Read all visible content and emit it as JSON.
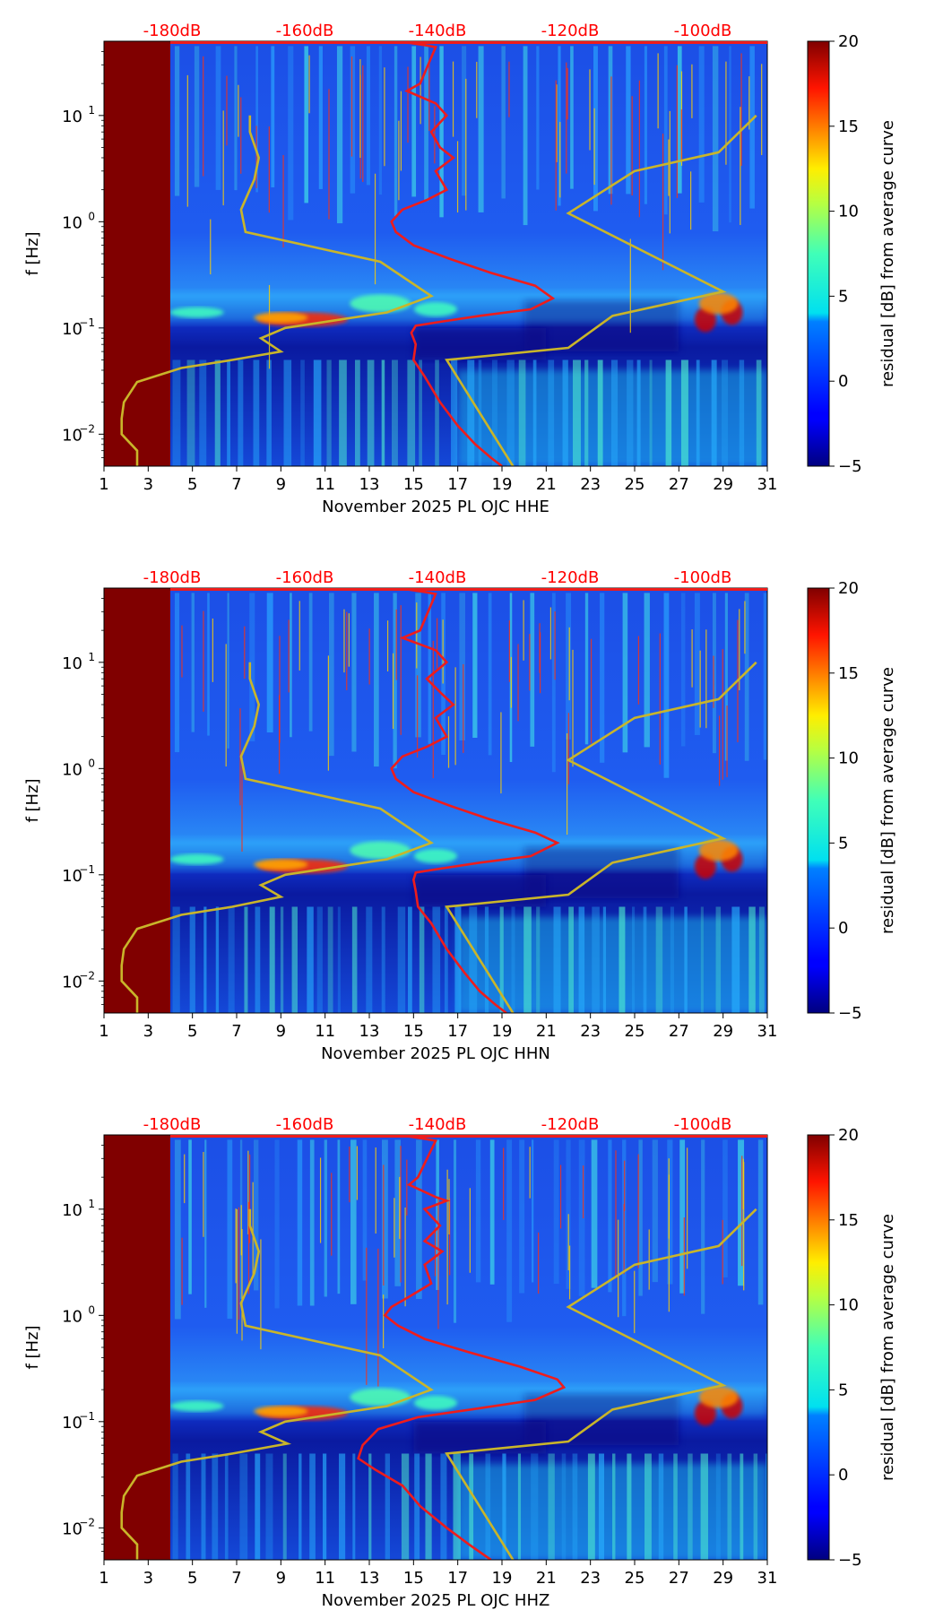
{
  "chart_data": [
    {
      "type": "heatmap",
      "channel": "HHE",
      "xlabel": "November 2025 PL OJC  HHE",
      "ylabel": "f [Hz]",
      "colorbar_label": "residual [dB] from average curve",
      "colorbar_range": [
        -5,
        20
      ],
      "colorbar_ticks": [
        "-5",
        "0",
        "5",
        "10",
        "15",
        "20"
      ],
      "xlim": [
        1,
        31
      ],
      "xticks": [
        "1",
        "3",
        "5",
        "7",
        "9",
        "11",
        "13",
        "15",
        "17",
        "19",
        "21",
        "23",
        "25",
        "27",
        "29",
        "31"
      ],
      "ylim": [
        0.005,
        50
      ],
      "yscale": "log",
      "yticks": [
        {
          "base": "10",
          "exp": "-2"
        },
        {
          "base": "10",
          "exp": "-1"
        },
        {
          "base": "10",
          "exp": "0"
        },
        {
          "base": "10",
          "exp": "1"
        }
      ],
      "top_axis_labels": [
        "-180dB",
        "-160dB",
        "-140dB",
        "-120dB",
        "-100dB"
      ],
      "top_axis_color": "#ff0000",
      "no_data_until_day": 4,
      "red_curve": [
        [
          14.3,
          50
        ],
        [
          15.5,
          46
        ],
        [
          16,
          44
        ],
        [
          15.3,
          20
        ],
        [
          14.7,
          17
        ],
        [
          16,
          13
        ],
        [
          16.5,
          10
        ],
        [
          15.8,
          7
        ],
        [
          16.2,
          5
        ],
        [
          16.8,
          4
        ],
        [
          16,
          3
        ],
        [
          16.5,
          2
        ],
        [
          15.6,
          1.6
        ],
        [
          14.5,
          1.3
        ],
        [
          14,
          1
        ],
        [
          14.2,
          0.8
        ],
        [
          15,
          0.6
        ],
        [
          16.6,
          0.45
        ],
        [
          18.5,
          0.33
        ],
        [
          20.5,
          0.25
        ],
        [
          21.3,
          0.19
        ],
        [
          20.3,
          0.15
        ],
        [
          18,
          0.13
        ],
        [
          16.3,
          0.115
        ],
        [
          15.1,
          0.105
        ],
        [
          14.9,
          0.09
        ],
        [
          15.1,
          0.07
        ],
        [
          15,
          0.05
        ],
        [
          15.5,
          0.035
        ],
        [
          16.2,
          0.02
        ],
        [
          17,
          0.012
        ],
        [
          17.8,
          0.008
        ],
        [
          18.5,
          0.006
        ],
        [
          19,
          0.005
        ]
      ],
      "yellow_curve": [
        [
          2.5,
          0.005
        ],
        [
          2.5,
          0.007
        ],
        [
          1.8,
          0.01
        ],
        [
          1.8,
          0.014
        ],
        [
          1.9,
          0.02
        ],
        [
          2.5,
          0.031
        ],
        [
          4.5,
          0.042
        ],
        [
          6.8,
          0.05
        ],
        [
          9,
          0.06
        ],
        [
          8.1,
          0.08
        ],
        [
          9.2,
          0.1
        ],
        [
          13.8,
          0.14
        ],
        [
          15.8,
          0.2
        ],
        [
          13.5,
          0.42
        ],
        [
          7.4,
          0.8
        ],
        [
          7.2,
          1.3
        ],
        [
          7.8,
          2.5
        ],
        [
          8,
          4
        ],
        [
          7.6,
          7
        ],
        [
          7.6,
          10
        ]
      ],
      "green_curve": [
        [
          19.5,
          0.005
        ],
        [
          16.5,
          0.05
        ],
        [
          22,
          0.065
        ],
        [
          24,
          0.13
        ],
        [
          29,
          0.22
        ],
        [
          22,
          1.2
        ],
        [
          25,
          3
        ],
        [
          28.8,
          4.5
        ],
        [
          30.5,
          10
        ]
      ]
    },
    {
      "type": "heatmap",
      "channel": "HHN",
      "xlabel": "November 2025 PL OJC  HHN",
      "ylabel": "f [Hz]",
      "colorbar_label": "residual [dB] from average curve",
      "colorbar_range": [
        -5,
        20
      ],
      "colorbar_ticks": [
        "-5",
        "0",
        "5",
        "10",
        "15",
        "20"
      ],
      "xlim": [
        1,
        31
      ],
      "xticks": [
        "1",
        "3",
        "5",
        "7",
        "9",
        "11",
        "13",
        "15",
        "17",
        "19",
        "21",
        "23",
        "25",
        "27",
        "29",
        "31"
      ],
      "ylim": [
        0.005,
        50
      ],
      "yscale": "log",
      "yticks": [
        {
          "base": "10",
          "exp": "-2"
        },
        {
          "base": "10",
          "exp": "-1"
        },
        {
          "base": "10",
          "exp": "0"
        },
        {
          "base": "10",
          "exp": "1"
        }
      ],
      "top_axis_labels": [
        "-180dB",
        "-160dB",
        "-140dB",
        "-120dB",
        "-100dB"
      ],
      "top_axis_color": "#ff0000",
      "no_data_until_day": 4,
      "red_curve": [
        [
          14.3,
          50
        ],
        [
          15.5,
          46
        ],
        [
          16,
          44
        ],
        [
          15.3,
          20
        ],
        [
          14.5,
          17
        ],
        [
          16,
          13
        ],
        [
          16.5,
          10
        ],
        [
          15.6,
          7
        ],
        [
          16.3,
          5
        ],
        [
          16.8,
          4
        ],
        [
          16,
          3
        ],
        [
          16.5,
          2
        ],
        [
          15.6,
          1.6
        ],
        [
          14.5,
          1.3
        ],
        [
          14,
          1
        ],
        [
          14.2,
          0.8
        ],
        [
          15,
          0.6
        ],
        [
          16.6,
          0.45
        ],
        [
          18.5,
          0.33
        ],
        [
          20.5,
          0.25
        ],
        [
          21.5,
          0.2
        ],
        [
          20.3,
          0.15
        ],
        [
          18,
          0.13
        ],
        [
          16.3,
          0.115
        ],
        [
          15.1,
          0.105
        ],
        [
          15,
          0.09
        ],
        [
          15.1,
          0.07
        ],
        [
          15.2,
          0.05
        ],
        [
          15.8,
          0.035
        ],
        [
          16.5,
          0.02
        ],
        [
          17.3,
          0.012
        ],
        [
          18,
          0.008
        ],
        [
          18.7,
          0.006
        ],
        [
          19.2,
          0.005
        ]
      ],
      "yellow_curve": [
        [
          2.5,
          0.005
        ],
        [
          2.5,
          0.007
        ],
        [
          1.8,
          0.01
        ],
        [
          1.8,
          0.014
        ],
        [
          1.9,
          0.02
        ],
        [
          2.5,
          0.031
        ],
        [
          4.5,
          0.042
        ],
        [
          6.8,
          0.05
        ],
        [
          9,
          0.062
        ],
        [
          8.1,
          0.08
        ],
        [
          9.2,
          0.1
        ],
        [
          13.8,
          0.14
        ],
        [
          15.8,
          0.2
        ],
        [
          13.5,
          0.42
        ],
        [
          7.4,
          0.8
        ],
        [
          7.2,
          1.3
        ],
        [
          7.8,
          2.5
        ],
        [
          8,
          4
        ],
        [
          7.6,
          7
        ],
        [
          7.6,
          10
        ]
      ],
      "green_curve": [
        [
          19.5,
          0.005
        ],
        [
          16.5,
          0.05
        ],
        [
          22,
          0.065
        ],
        [
          24,
          0.13
        ],
        [
          29,
          0.22
        ],
        [
          22,
          1.2
        ],
        [
          25,
          3
        ],
        [
          28.8,
          4.5
        ],
        [
          30.5,
          10
        ]
      ]
    },
    {
      "type": "heatmap",
      "channel": "HHZ",
      "xlabel": "November 2025 PL OJC  HHZ",
      "ylabel": "f [Hz]",
      "colorbar_label": "residual [dB] from average curve",
      "colorbar_range": [
        -5,
        20
      ],
      "colorbar_ticks": [
        "-5",
        "0",
        "5",
        "10",
        "15",
        "20"
      ],
      "xlim": [
        1,
        31
      ],
      "xticks": [
        "1",
        "3",
        "5",
        "7",
        "9",
        "11",
        "13",
        "15",
        "17",
        "19",
        "21",
        "23",
        "25",
        "27",
        "29",
        "31"
      ],
      "ylim": [
        0.005,
        50
      ],
      "yscale": "log",
      "yticks": [
        {
          "base": "10",
          "exp": "-2"
        },
        {
          "base": "10",
          "exp": "-1"
        },
        {
          "base": "10",
          "exp": "0"
        },
        {
          "base": "10",
          "exp": "1"
        }
      ],
      "top_axis_labels": [
        "-180dB",
        "-160dB",
        "-140dB",
        "-120dB",
        "-100dB"
      ],
      "top_axis_color": "#ff0000",
      "no_data_until_day": 4,
      "red_curve": [
        [
          14.3,
          50
        ],
        [
          15.5,
          46
        ],
        [
          16,
          44
        ],
        [
          15.2,
          20
        ],
        [
          14.8,
          17
        ],
        [
          16,
          13
        ],
        [
          16.5,
          12
        ],
        [
          15.5,
          10
        ],
        [
          16.2,
          7
        ],
        [
          15.5,
          5
        ],
        [
          16.3,
          4
        ],
        [
          15.5,
          3
        ],
        [
          15.8,
          2
        ],
        [
          14.8,
          1.5
        ],
        [
          14,
          1.2
        ],
        [
          13.7,
          1
        ],
        [
          14.3,
          0.8
        ],
        [
          15.5,
          0.6
        ],
        [
          17.5,
          0.45
        ],
        [
          19.8,
          0.33
        ],
        [
          21.5,
          0.25
        ],
        [
          21.8,
          0.21
        ],
        [
          20.5,
          0.16
        ],
        [
          17.6,
          0.13
        ],
        [
          15.2,
          0.11
        ],
        [
          13.4,
          0.085
        ],
        [
          12.7,
          0.06
        ],
        [
          12.5,
          0.045
        ],
        [
          13.3,
          0.035
        ],
        [
          14.5,
          0.025
        ],
        [
          15.3,
          0.016
        ],
        [
          16.5,
          0.01
        ],
        [
          17.5,
          0.007
        ],
        [
          18.5,
          0.005
        ]
      ],
      "yellow_curve": [
        [
          2.5,
          0.005
        ],
        [
          2.5,
          0.007
        ],
        [
          1.8,
          0.01
        ],
        [
          1.8,
          0.014
        ],
        [
          1.9,
          0.02
        ],
        [
          2.5,
          0.031
        ],
        [
          4.5,
          0.042
        ],
        [
          6.8,
          0.05
        ],
        [
          9.3,
          0.062
        ],
        [
          8.1,
          0.08
        ],
        [
          9.2,
          0.1
        ],
        [
          13.8,
          0.14
        ],
        [
          15.8,
          0.2
        ],
        [
          13.5,
          0.42
        ],
        [
          7.4,
          0.8
        ],
        [
          7.2,
          1.3
        ],
        [
          7.8,
          2.5
        ],
        [
          8,
          4
        ],
        [
          7.6,
          7
        ],
        [
          7.6,
          10
        ]
      ],
      "green_curve": [
        [
          19.5,
          0.005
        ],
        [
          16.5,
          0.05
        ],
        [
          22,
          0.065
        ],
        [
          24,
          0.13
        ],
        [
          29,
          0.22
        ],
        [
          22,
          1.2
        ],
        [
          25,
          3
        ],
        [
          28.8,
          4.5
        ],
        [
          30.5,
          10
        ]
      ]
    }
  ],
  "colors": {
    "red_curve": "#ee1c1c",
    "yellow_curve": "#c9b52a",
    "no_data_fill": "#800000",
    "background_low": "#1a2fd6",
    "background_floor": "#0a0a8c"
  }
}
